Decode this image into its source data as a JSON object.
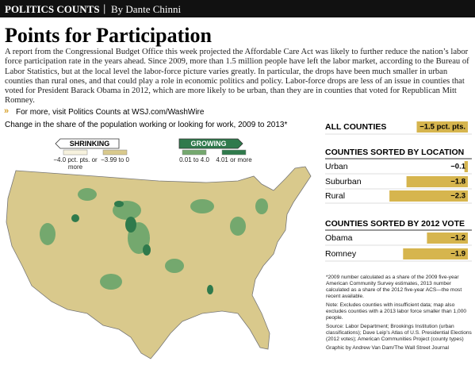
{
  "header": {
    "section": "POLITICS COUNTS",
    "byline": "By Dante Chinni"
  },
  "title": "Points for Participation",
  "body": "A report from the Congressional Budget Office this week projected the Affordable Care Act was likely to further reduce the nation’s labor force participation rate in the years ahead. Since 2009, more than 1.5 million people have left the labor market, according to the Bureau of Labor Statistics, but at the local level the labor-force picture varies greatly. In particular, the drops have been much smaller in urban counties than rural ones, and that could play a role in economic politics and policy. Labor-force drops are less of an issue in counties that voted for President Barack Obama in 2012, which are more likely to be urban, than they are in counties that voted for Republican Mitt Romney.",
  "link": "For more, visit Politics Counts at WSJ.com/WashWire",
  "map": {
    "subtitle": "Change in the share of the population working or looking for work, 2009 to 2013*",
    "legend": {
      "shrinking": "SHRINKING",
      "growing": "GROWING",
      "bins": [
        {
          "label": "−4.0 pct. pts. or more",
          "color": "#f7f2de"
        },
        {
          "label": "−3.99 to 0",
          "color": "#d9c98c"
        },
        {
          "label": "0.01 to 4.0",
          "color": "#74a86e"
        },
        {
          "label": "4.01 or more",
          "color": "#2f7a4c"
        }
      ]
    }
  },
  "chart_data": [
    {
      "type": "bar",
      "orientation": "horizontal",
      "categories": [
        "ALL COUNTIES"
      ],
      "values": [
        -1.5
      ],
      "value_labels": [
        "−1.5 pct. pts."
      ],
      "color": "#d6b54e"
    },
    {
      "type": "bar",
      "orientation": "horizontal",
      "title": "COUNTIES SORTED BY LOCATION",
      "categories": [
        "Urban",
        "Suburban",
        "Rural"
      ],
      "values": [
        -0.1,
        -1.8,
        -2.3
      ],
      "value_labels": [
        "−0.1",
        "−1.8",
        "−2.3"
      ],
      "color": "#d6b54e"
    },
    {
      "type": "bar",
      "orientation": "horizontal",
      "title": "COUNTIES SORTED BY 2012 VOTE",
      "categories": [
        "Obama",
        "Romney"
      ],
      "values": [
        -1.2,
        -1.9
      ],
      "value_labels": [
        "−1.2",
        "−1.9"
      ],
      "color": "#d6b54e"
    }
  ],
  "notes": [
    "*2009 number calculated as a share of the 2009 five-year American Community Survey estimates, 2013 number calculated as a share of the 2012 five-year ACS—the most recent available.",
    "Note: Excludes counties with insufficient data; map also excludes counties with a 2013 labor force smaller than 1,000 people.",
    "Source: Labor Department; Brookings Institution (urban classifications); Dave Leip’s Atlas of U.S. Presidential Elections (2012 votes); American Communities Project (county types)",
    "Graphic by Andrew Van Dam/The Wall Street Journal"
  ]
}
